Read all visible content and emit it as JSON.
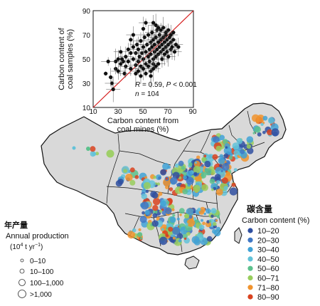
{
  "scatter": {
    "xlabel_line1": "Carbon content from",
    "xlabel_line2": "coal mines (%)",
    "ylabel_line1": "Carbon content of",
    "ylabel_line2": "coal samples (%)",
    "x_ticks": [
      "10",
      "30",
      "50",
      "70",
      "90"
    ],
    "y_ticks": [
      "90",
      "70",
      "50",
      "30",
      "10"
    ],
    "stat_r_label": "R",
    "stat_r_value": " = 0.59, ",
    "stat_p_label": "P",
    "stat_p_value": " < 0.001",
    "stat_n_label": "n",
    "stat_n_value": " = 104"
  },
  "chart_data": {
    "type": "scatter",
    "xlabel": "Carbon content from coal mines (%)",
    "ylabel": "Carbon content of coal samples (%)",
    "xlim": [
      10,
      90
    ],
    "ylim": [
      10,
      90
    ],
    "one_to_one_line": true,
    "annotation": "R = 0.59, P < 0.001, n = 104",
    "points": [
      [
        20,
        38
      ],
      [
        25,
        30
      ],
      [
        24,
        35
      ],
      [
        26,
        25
      ],
      [
        28,
        42
      ],
      [
        30,
        40
      ],
      [
        32,
        46
      ],
      [
        35,
        38
      ],
      [
        33,
        50
      ],
      [
        36,
        44
      ],
      [
        38,
        48
      ],
      [
        40,
        42
      ],
      [
        40,
        55
      ],
      [
        42,
        50
      ],
      [
        42,
        60
      ],
      [
        44,
        45
      ],
      [
        44,
        55
      ],
      [
        45,
        62
      ],
      [
        46,
        48
      ],
      [
        46,
        58
      ],
      [
        47,
        52
      ],
      [
        48,
        65
      ],
      [
        48,
        44
      ],
      [
        49,
        55
      ],
      [
        50,
        60
      ],
      [
        50,
        50
      ],
      [
        51,
        68
      ],
      [
        52,
        56
      ],
      [
        52,
        46
      ],
      [
        53,
        62
      ],
      [
        54,
        52
      ],
      [
        54,
        70
      ],
      [
        55,
        58
      ],
      [
        55,
        48
      ],
      [
        56,
        64
      ],
      [
        56,
        54
      ],
      [
        57,
        60
      ],
      [
        57,
        72
      ],
      [
        58,
        50
      ],
      [
        58,
        66
      ],
      [
        59,
        56
      ],
      [
        59,
        62
      ],
      [
        60,
        52
      ],
      [
        60,
        68
      ],
      [
        61,
        58
      ],
      [
        61,
        74
      ],
      [
        62,
        64
      ],
      [
        62,
        54
      ],
      [
        63,
        60
      ],
      [
        63,
        70
      ],
      [
        64,
        56
      ],
      [
        64,
        66
      ],
      [
        65,
        62
      ],
      [
        65,
        50
      ],
      [
        66,
        58
      ],
      [
        66,
        68
      ],
      [
        67,
        64
      ],
      [
        67,
        54
      ],
      [
        68,
        60
      ],
      [
        68,
        72
      ],
      [
        69,
        56
      ],
      [
        69,
        66
      ],
      [
        70,
        62
      ],
      [
        70,
        52
      ],
      [
        71,
        68
      ],
      [
        72,
        58
      ],
      [
        72,
        64
      ],
      [
        73,
        60
      ],
      [
        74,
        66
      ],
      [
        75,
        56
      ],
      [
        44,
        38
      ],
      [
        46,
        40
      ],
      [
        48,
        36
      ],
      [
        50,
        42
      ],
      [
        52,
        38
      ],
      [
        54,
        44
      ],
      [
        56,
        40
      ],
      [
        58,
        46
      ],
      [
        38,
        58
      ],
      [
        36,
        52
      ],
      [
        34,
        48
      ],
      [
        32,
        56
      ],
      [
        30,
        50
      ],
      [
        28,
        48
      ],
      [
        40,
        66
      ],
      [
        42,
        70
      ],
      [
        50,
        75
      ],
      [
        52,
        80
      ],
      [
        58,
        80
      ],
      [
        60,
        78
      ],
      [
        62,
        76
      ],
      [
        64,
        74
      ],
      [
        66,
        76
      ],
      [
        68,
        70
      ],
      [
        70,
        74
      ],
      [
        72,
        70
      ],
      [
        74,
        72
      ],
      [
        76,
        62
      ],
      [
        78,
        60
      ],
      [
        58,
        42
      ],
      [
        60,
        44
      ],
      [
        62,
        46
      ],
      [
        56,
        36
      ],
      [
        22,
        48
      ]
    ]
  },
  "legend_carbon": {
    "title_zh": "碳含量",
    "title_en": "Carbon content (%)",
    "items": [
      {
        "label": "10–20",
        "color": "#2f4fa0"
      },
      {
        "label": "20–30",
        "color": "#3f77c4"
      },
      {
        "label": "30–40",
        "color": "#41a2d6"
      },
      {
        "label": "40–50",
        "color": "#62c2d8"
      },
      {
        "label": "50–60",
        "color": "#5cc18c"
      },
      {
        "label": "60–71",
        "color": "#98cd5c"
      },
      {
        "label": "71–80",
        "color": "#f0932d"
      },
      {
        "label": "80–90",
        "color": "#d9421f"
      }
    ]
  },
  "legend_production": {
    "title_zh": "年产量",
    "title_en": "Annual production",
    "unit_open": "(10",
    "unit_sup": "4",
    "unit_mid": " t yr",
    "unit_sup2": "−1",
    "unit_close": ")",
    "items": [
      "0–10",
      "10–100",
      "100–1,000",
      ">1,000"
    ]
  }
}
